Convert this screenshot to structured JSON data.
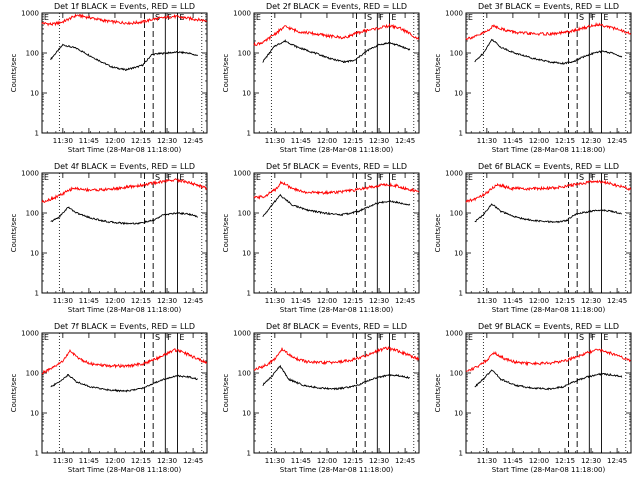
{
  "figure": {
    "background": "#ffffff",
    "events_color": "#000000",
    "lld_color": "#ff0000"
  },
  "chart_data": [
    {
      "type": "line",
      "title": "Det 1f BLACK = Events, RED = LLD",
      "xlabel": "Start Time (28-Mar-08 11:18:00)",
      "ylabel": "Counts/sec",
      "yscale": "log",
      "ylim": [
        1,
        1000
      ],
      "xlim_minutes": [
        0,
        95
      ],
      "x_ticks": [
        "11:30",
        "11:45",
        "12:00",
        "12:15",
        "12:30",
        "12:45"
      ],
      "y_ticks": [
        "1",
        "10",
        "100",
        "1000"
      ],
      "flags": [
        "E",
        "S",
        "F",
        "E"
      ],
      "dotted_lines_minutes": [
        10,
        92
      ],
      "dashed_lines_minutes": [
        59,
        64
      ],
      "solid_lines_minutes": [
        71,
        78
      ],
      "series": [
        {
          "name": "Events",
          "color": "#000000",
          "x_minutes": [
            5,
            12,
            20,
            30,
            40,
            48,
            55,
            58,
            60,
            63,
            66,
            72,
            78,
            84,
            90
          ],
          "values": [
            70,
            160,
            130,
            75,
            45,
            38,
            45,
            50,
            62,
            90,
            95,
            100,
            105,
            100,
            85
          ]
        },
        {
          "name": "LLD",
          "color": "#ff0000",
          "x_minutes": [
            0,
            6,
            12,
            20,
            28,
            36,
            44,
            52,
            58,
            64,
            70,
            76,
            82,
            88,
            95
          ],
          "values": [
            560,
            520,
            600,
            880,
            760,
            640,
            580,
            560,
            600,
            700,
            760,
            820,
            760,
            700,
            640
          ]
        }
      ]
    },
    {
      "type": "line",
      "title": "Det 2f BLACK = Events, RED = LLD",
      "xlabel": "Start Time (28-Mar-08 11:18:00)",
      "ylabel": "Counts/sec",
      "yscale": "log",
      "ylim": [
        1,
        1000
      ],
      "xlim_minutes": [
        0,
        95
      ],
      "x_ticks": [
        "11:30",
        "11:45",
        "12:00",
        "12:15",
        "12:30",
        "12:45"
      ],
      "y_ticks": [
        "1",
        "10",
        "100",
        "1000"
      ],
      "flags": [
        "E",
        "S",
        "F",
        "E"
      ],
      "dotted_lines_minutes": [
        10,
        92
      ],
      "dashed_lines_minutes": [
        59,
        64
      ],
      "solid_lines_minutes": [
        71,
        78
      ],
      "series": [
        {
          "name": "Events",
          "color": "#000000",
          "x_minutes": [
            5,
            12,
            18,
            25,
            35,
            45,
            52,
            58,
            62,
            66,
            72,
            78,
            84,
            90
          ],
          "values": [
            60,
            150,
            200,
            140,
            100,
            70,
            60,
            65,
            90,
            120,
            160,
            180,
            150,
            120
          ]
        },
        {
          "name": "LLD",
          "color": "#ff0000",
          "x_minutes": [
            0,
            6,
            12,
            18,
            25,
            35,
            45,
            52,
            58,
            64,
            72,
            78,
            84,
            90,
            95
          ],
          "values": [
            160,
            190,
            300,
            460,
            350,
            300,
            260,
            240,
            300,
            360,
            420,
            480,
            420,
            300,
            220
          ]
        }
      ]
    },
    {
      "type": "line",
      "title": "Det 3f BLACK = Events, RED = LLD",
      "xlabel": "Start Time (28-Mar-08 11:18:00)",
      "ylabel": "Counts/sec",
      "yscale": "log",
      "ylim": [
        1,
        1000
      ],
      "xlim_minutes": [
        0,
        95
      ],
      "x_ticks": [
        "11:30",
        "11:45",
        "12:00",
        "12:15",
        "12:30",
        "12:45"
      ],
      "y_ticks": [
        "1",
        "10",
        "100",
        "1000"
      ],
      "flags": [
        "E",
        "S",
        "F",
        "E"
      ],
      "dotted_lines_minutes": [
        10,
        92
      ],
      "dashed_lines_minutes": [
        59,
        64
      ],
      "solid_lines_minutes": [
        71,
        78
      ],
      "series": [
        {
          "name": "Events",
          "color": "#000000",
          "x_minutes": [
            5,
            10,
            15,
            20,
            28,
            38,
            48,
            56,
            62,
            66,
            72,
            78,
            84,
            90
          ],
          "values": [
            60,
            100,
            220,
            140,
            100,
            75,
            60,
            55,
            60,
            75,
            95,
            110,
            100,
            80
          ]
        },
        {
          "name": "LLD",
          "color": "#ff0000",
          "x_minutes": [
            0,
            6,
            12,
            16,
            22,
            30,
            40,
            50,
            58,
            64,
            70,
            76,
            82,
            88,
            95
          ],
          "values": [
            230,
            260,
            350,
            480,
            380,
            320,
            300,
            300,
            330,
            380,
            450,
            520,
            460,
            380,
            300
          ]
        }
      ]
    },
    {
      "type": "line",
      "title": "Det 4f BLACK = Events, RED = LLD",
      "xlabel": "Start Time (28-Mar-08 11:18:00)",
      "ylabel": "Counts/sec",
      "yscale": "log",
      "ylim": [
        1,
        1000
      ],
      "xlim_minutes": [
        0,
        95
      ],
      "x_ticks": [
        "11:30",
        "11:45",
        "12:00",
        "12:15",
        "12:30",
        "12:45"
      ],
      "y_ticks": [
        "1",
        "10",
        "100",
        "1000"
      ],
      "flags": [
        "E",
        "S",
        "F",
        "E"
      ],
      "dotted_lines_minutes": [
        10,
        92
      ],
      "dashed_lines_minutes": [
        59,
        64
      ],
      "solid_lines_minutes": [
        71,
        78
      ],
      "series": [
        {
          "name": "Events",
          "color": "#000000",
          "x_minutes": [
            5,
            10,
            15,
            20,
            28,
            38,
            48,
            56,
            60,
            64,
            70,
            78,
            84,
            90
          ],
          "values": [
            60,
            80,
            140,
            100,
            75,
            60,
            55,
            55,
            60,
            65,
            90,
            100,
            95,
            80
          ]
        },
        {
          "name": "LLD",
          "color": "#ff0000",
          "x_minutes": [
            0,
            6,
            12,
            18,
            25,
            35,
            45,
            52,
            58,
            64,
            70,
            76,
            82,
            88,
            95
          ],
          "values": [
            190,
            230,
            300,
            420,
            380,
            380,
            420,
            460,
            500,
            560,
            620,
            680,
            620,
            520,
            420
          ]
        }
      ]
    },
    {
      "type": "line",
      "title": "Det 5f BLACK = Events, RED = LLD",
      "xlabel": "Start Time (28-Mar-08 11:18:00)",
      "ylabel": "Counts/sec",
      "yscale": "log",
      "ylim": [
        1,
        1000
      ],
      "xlim_minutes": [
        0,
        95
      ],
      "x_ticks": [
        "11:30",
        "11:45",
        "12:00",
        "12:15",
        "12:30",
        "12:45"
      ],
      "y_ticks": [
        "1",
        "10",
        "100",
        "1000"
      ],
      "flags": [
        "E",
        "S",
        "F",
        "E"
      ],
      "dotted_lines_minutes": [
        10,
        92
      ],
      "dashed_lines_minutes": [
        59,
        64
      ],
      "solid_lines_minutes": [
        71,
        78
      ],
      "series": [
        {
          "name": "Events",
          "color": "#000000",
          "x_minutes": [
            5,
            10,
            15,
            22,
            30,
            40,
            50,
            56,
            60,
            64,
            70,
            78,
            84,
            90
          ],
          "values": [
            80,
            150,
            280,
            160,
            120,
            100,
            90,
            100,
            110,
            130,
            170,
            200,
            180,
            160
          ]
        },
        {
          "name": "LLD",
          "color": "#ff0000",
          "x_minutes": [
            0,
            6,
            12,
            16,
            22,
            30,
            40,
            50,
            58,
            64,
            70,
            76,
            82,
            88,
            95
          ],
          "values": [
            240,
            260,
            380,
            600,
            400,
            330,
            320,
            340,
            370,
            420,
            470,
            520,
            480,
            400,
            340
          ]
        }
      ]
    },
    {
      "type": "line",
      "title": "Det 6f BLACK = Events, RED = LLD",
      "xlabel": "Start Time (28-Mar-08 11:18:00)",
      "ylabel": "Counts/sec",
      "yscale": "log",
      "ylim": [
        1,
        1000
      ],
      "xlim_minutes": [
        0,
        95
      ],
      "x_ticks": [
        "11:30",
        "11:45",
        "12:00",
        "12:15",
        "12:30",
        "12:45"
      ],
      "y_ticks": [
        "1",
        "10",
        "100",
        "1000"
      ],
      "flags": [
        "E",
        "S",
        "F",
        "E"
      ],
      "dotted_lines_minutes": [
        10,
        92
      ],
      "dashed_lines_minutes": [
        59,
        64
      ],
      "solid_lines_minutes": [
        71,
        78
      ],
      "series": [
        {
          "name": "Events",
          "color": "#000000",
          "x_minutes": [
            5,
            10,
            15,
            20,
            28,
            38,
            48,
            54,
            58,
            62,
            66,
            72,
            78,
            84,
            90
          ],
          "values": [
            60,
            90,
            170,
            110,
            80,
            65,
            60,
            60,
            65,
            90,
            100,
            110,
            120,
            110,
            95
          ]
        },
        {
          "name": "LLD",
          "color": "#ff0000",
          "x_minutes": [
            0,
            6,
            12,
            18,
            25,
            35,
            45,
            52,
            58,
            64,
            70,
            76,
            82,
            88,
            95
          ],
          "values": [
            190,
            230,
            320,
            520,
            420,
            400,
            410,
            430,
            470,
            520,
            580,
            620,
            560,
            470,
            390
          ]
        }
      ]
    },
    {
      "type": "line",
      "title": "Det 7f BLACK = Events, RED = LLD",
      "xlabel": "Start Time (28-Mar-08 11:18:00)",
      "ylabel": "Counts/sec",
      "yscale": "log",
      "ylim": [
        1,
        1000
      ],
      "xlim_minutes": [
        0,
        95
      ],
      "x_ticks": [
        "11:30",
        "11:45",
        "12:00",
        "12:15",
        "12:30",
        "12:45"
      ],
      "y_ticks": [
        "1",
        "10",
        "100",
        "1000"
      ],
      "flags": [
        "E",
        "S",
        "F",
        "E"
      ],
      "dotted_lines_minutes": [
        10,
        92
      ],
      "dashed_lines_minutes": [
        59,
        64
      ],
      "solid_lines_minutes": [
        71,
        78
      ],
      "series": [
        {
          "name": "Events",
          "color": "#000000",
          "x_minutes": [
            5,
            10,
            15,
            20,
            28,
            38,
            48,
            56,
            60,
            64,
            70,
            78,
            84,
            90
          ],
          "values": [
            45,
            60,
            90,
            60,
            45,
            38,
            35,
            40,
            45,
            55,
            70,
            85,
            80,
            70
          ]
        },
        {
          "name": "LLD",
          "color": "#ff0000",
          "x_minutes": [
            0,
            6,
            12,
            16,
            22,
            30,
            40,
            50,
            58,
            64,
            70,
            76,
            82,
            88,
            95
          ],
          "values": [
            100,
            130,
            200,
            350,
            220,
            160,
            150,
            150,
            170,
            210,
            280,
            380,
            320,
            240,
            180
          ]
        }
      ]
    },
    {
      "type": "line",
      "title": "Det 8f BLACK = Events, RED = LLD",
      "xlabel": "Start Time (28-Mar-08 11:18:00)",
      "ylabel": "Counts/sec",
      "yscale": "log",
      "ylim": [
        1,
        1000
      ],
      "xlim_minutes": [
        0,
        95
      ],
      "x_ticks": [
        "11:30",
        "11:45",
        "12:00",
        "12:15",
        "12:30",
        "12:45"
      ],
      "y_ticks": [
        "1",
        "10",
        "100",
        "1000"
      ],
      "flags": [
        "E",
        "S",
        "F",
        "E"
      ],
      "dotted_lines_minutes": [
        10,
        92
      ],
      "dashed_lines_minutes": [
        59,
        64
      ],
      "solid_lines_minutes": [
        71,
        78
      ],
      "series": [
        {
          "name": "Events",
          "color": "#000000",
          "x_minutes": [
            5,
            10,
            15,
            20,
            28,
            38,
            48,
            56,
            60,
            64,
            70,
            78,
            84,
            90
          ],
          "values": [
            50,
            80,
            150,
            70,
            50,
            42,
            40,
            45,
            50,
            60,
            75,
            90,
            85,
            75
          ]
        },
        {
          "name": "LLD",
          "color": "#ff0000",
          "x_minutes": [
            0,
            6,
            12,
            16,
            22,
            30,
            40,
            50,
            58,
            64,
            70,
            76,
            82,
            88,
            95
          ],
          "values": [
            120,
            150,
            220,
            400,
            250,
            190,
            180,
            190,
            220,
            270,
            340,
            420,
            370,
            290,
            220
          ]
        }
      ]
    },
    {
      "type": "line",
      "title": "Det 9f BLACK = Events, RED = LLD",
      "xlabel": "Start Time (28-Mar-08 11:18:00)",
      "ylabel": "Counts/sec",
      "yscale": "log",
      "ylim": [
        1,
        1000
      ],
      "xlim_minutes": [
        0,
        95
      ],
      "x_ticks": [
        "11:30",
        "11:45",
        "12:00",
        "12:15",
        "12:30",
        "12:45"
      ],
      "y_ticks": [
        "1",
        "10",
        "100",
        "1000"
      ],
      "flags": [
        "E",
        "S",
        "F",
        "E"
      ],
      "dotted_lines_minutes": [
        10,
        92
      ],
      "dashed_lines_minutes": [
        59,
        64
      ],
      "solid_lines_minutes": [
        71,
        78
      ],
      "series": [
        {
          "name": "Events",
          "color": "#000000",
          "x_minutes": [
            5,
            10,
            15,
            20,
            28,
            38,
            48,
            56,
            60,
            64,
            70,
            78,
            84,
            90
          ],
          "values": [
            45,
            70,
            120,
            70,
            50,
            42,
            40,
            45,
            55,
            65,
            80,
            95,
            90,
            80
          ]
        },
        {
          "name": "LLD",
          "color": "#ff0000",
          "x_minutes": [
            0,
            6,
            12,
            16,
            22,
            30,
            40,
            50,
            58,
            64,
            70,
            76,
            82,
            88,
            95
          ],
          "values": [
            110,
            140,
            210,
            330,
            230,
            180,
            170,
            180,
            210,
            260,
            320,
            380,
            330,
            260,
            200
          ]
        }
      ]
    }
  ]
}
